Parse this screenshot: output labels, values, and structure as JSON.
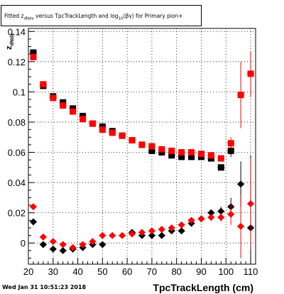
{
  "title": "Fitted  z_dNdx versus TpcTrackLength and log_10(βγ) for Primary pion+",
  "footer": {
    "date": "Wed Jan 31 10:51:23 2018"
  },
  "colors": {
    "black_series": "#000000",
    "red_series": "#ff0000",
    "grid": "#000000",
    "background": "#ffffff"
  },
  "chart_data": {
    "type": "scatter",
    "title": "Fitted  z_dNdx versus TpcTrackLength and log_10(βγ) for Primary pion+",
    "xlabel": "TpcTrackLength (cm)",
    "ylabel": "z_dNdx",
    "xlim": [
      20,
      112
    ],
    "ylim": [
      -0.014,
      0.142
    ],
    "grid": true,
    "x_ticks": [
      "20",
      "30",
      "40",
      "50",
      "60",
      "70",
      "80",
      "90",
      "100",
      "110"
    ],
    "y_ticks": [
      "0",
      "0.02",
      "0.04",
      "0.06",
      "0.08",
      "0.1",
      "0.12",
      "0.14"
    ],
    "series": [
      {
        "marker": "square",
        "color": "#000000",
        "points": [
          {
            "x": 22,
            "y": 0.126,
            "err": 0.001
          },
          {
            "x": 26,
            "y": 0.104,
            "err": 0.001
          },
          {
            "x": 30,
            "y": 0.097,
            "err": 0.001
          },
          {
            "x": 34,
            "y": 0.093,
            "err": 0.001
          },
          {
            "x": 38,
            "y": 0.089,
            "err": 0.001
          },
          {
            "x": 42,
            "y": 0.084,
            "err": 0.001
          },
          {
            "x": 46,
            "y": 0.079,
            "err": 0.001
          },
          {
            "x": 50,
            "y": 0.077,
            "err": 0.001
          },
          {
            "x": 54,
            "y": 0.074,
            "err": 0.001
          },
          {
            "x": 58,
            "y": 0.071,
            "err": 0.001
          },
          {
            "x": 62,
            "y": 0.068,
            "err": 0.001
          },
          {
            "x": 66,
            "y": 0.065,
            "err": 0.001
          },
          {
            "x": 70,
            "y": 0.061,
            "err": 0.001
          },
          {
            "x": 74,
            "y": 0.06,
            "err": 0.001
          },
          {
            "x": 78,
            "y": 0.058,
            "err": 0.001
          },
          {
            "x": 82,
            "y": 0.057,
            "err": 0.001
          },
          {
            "x": 86,
            "y": 0.057,
            "err": 0.001
          },
          {
            "x": 90,
            "y": 0.057,
            "err": 0.001
          },
          {
            "x": 94,
            "y": 0.056,
            "err": 0.001
          },
          {
            "x": 98,
            "y": 0.05,
            "err": 0.002
          },
          {
            "x": 102,
            "y": 0.061,
            "err": 0.004
          }
        ]
      },
      {
        "marker": "square",
        "color": "#ff0000",
        "points": [
          {
            "x": 22,
            "y": 0.123,
            "err": 0.001
          },
          {
            "x": 26,
            "y": 0.105,
            "err": 0.001
          },
          {
            "x": 30,
            "y": 0.096,
            "err": 0.001
          },
          {
            "x": 34,
            "y": 0.091,
            "err": 0.001
          },
          {
            "x": 38,
            "y": 0.087,
            "err": 0.001
          },
          {
            "x": 42,
            "y": 0.082,
            "err": 0.001
          },
          {
            "x": 46,
            "y": 0.079,
            "err": 0.001
          },
          {
            "x": 50,
            "y": 0.075,
            "err": 0.001
          },
          {
            "x": 54,
            "y": 0.073,
            "err": 0.001
          },
          {
            "x": 58,
            "y": 0.071,
            "err": 0.001
          },
          {
            "x": 62,
            "y": 0.068,
            "err": 0.001
          },
          {
            "x": 66,
            "y": 0.065,
            "err": 0.001
          },
          {
            "x": 70,
            "y": 0.064,
            "err": 0.001
          },
          {
            "x": 74,
            "y": 0.062,
            "err": 0.001
          },
          {
            "x": 78,
            "y": 0.061,
            "err": 0.001
          },
          {
            "x": 82,
            "y": 0.06,
            "err": 0.001
          },
          {
            "x": 86,
            "y": 0.06,
            "err": 0.001
          },
          {
            "x": 90,
            "y": 0.059,
            "err": 0.001
          },
          {
            "x": 94,
            "y": 0.058,
            "err": 0.001
          },
          {
            "x": 98,
            "y": 0.056,
            "err": 0.002
          },
          {
            "x": 102,
            "y": 0.066,
            "err": 0.004
          },
          {
            "x": 106,
            "y": 0.098,
            "err": 0.022
          },
          {
            "x": 110,
            "y": 0.112,
            "err": 0.015
          }
        ]
      },
      {
        "marker": "diamond",
        "color": "#000000",
        "points": [
          {
            "x": 22,
            "y": 0.014,
            "err": 0.002
          },
          {
            "x": 26,
            "y": -0.001,
            "err": 0.002
          },
          {
            "x": 30,
            "y": -0.004,
            "err": 0.001
          },
          {
            "x": 34,
            "y": -0.005,
            "err": 0.001
          },
          {
            "x": 38,
            "y": -0.004,
            "err": 0.001
          },
          {
            "x": 42,
            "y": -0.003,
            "err": 0.001
          },
          {
            "x": 46,
            "y": -0.001,
            "err": 0.001
          },
          {
            "x": 50,
            "y": -0.001,
            "err": 0.001
          },
          {
            "x": 62,
            "y": 0.007,
            "err": 0.001
          },
          {
            "x": 66,
            "y": 0.005,
            "err": 0.001
          },
          {
            "x": 70,
            "y": 0.005,
            "err": 0.001
          },
          {
            "x": 74,
            "y": 0.005,
            "err": 0.001
          },
          {
            "x": 78,
            "y": 0.008,
            "err": 0.001
          },
          {
            "x": 82,
            "y": 0.008,
            "err": 0.001
          },
          {
            "x": 86,
            "y": 0.013,
            "err": 0.001
          },
          {
            "x": 90,
            "y": 0.016,
            "err": 0.002
          },
          {
            "x": 94,
            "y": 0.02,
            "err": 0.002
          },
          {
            "x": 98,
            "y": 0.021,
            "err": 0.003
          },
          {
            "x": 102,
            "y": 0.024,
            "err": 0.006
          },
          {
            "x": 106,
            "y": 0.039,
            "err": 0.015
          },
          {
            "x": 110,
            "y": 0.01,
            "err": 0.048
          }
        ]
      },
      {
        "marker": "diamond",
        "color": "#ff0000",
        "points": [
          {
            "x": 22,
            "y": 0.024,
            "err": 0.001
          },
          {
            "x": 26,
            "y": 0.004,
            "err": 0.001
          },
          {
            "x": 30,
            "y": 0.001,
            "err": 0.001
          },
          {
            "x": 34,
            "y": -0.001,
            "err": 0.001
          },
          {
            "x": 38,
            "y": -0.003,
            "err": 0.001
          },
          {
            "x": 42,
            "y": -0.001,
            "err": 0.001
          },
          {
            "x": 46,
            "y": 0.001,
            "err": 0.001
          },
          {
            "x": 50,
            "y": 0.005,
            "err": 0.001
          },
          {
            "x": 54,
            "y": 0.005,
            "err": 0.001
          },
          {
            "x": 58,
            "y": 0.005,
            "err": 0.001
          },
          {
            "x": 62,
            "y": 0.006,
            "err": 0.001
          },
          {
            "x": 66,
            "y": 0.007,
            "err": 0.001
          },
          {
            "x": 70,
            "y": 0.008,
            "err": 0.001
          },
          {
            "x": 74,
            "y": 0.009,
            "err": 0.001
          },
          {
            "x": 78,
            "y": 0.01,
            "err": 0.001
          },
          {
            "x": 82,
            "y": 0.012,
            "err": 0.001
          },
          {
            "x": 86,
            "y": 0.015,
            "err": 0.001
          },
          {
            "x": 90,
            "y": 0.016,
            "err": 0.002
          },
          {
            "x": 94,
            "y": 0.017,
            "err": 0.002
          },
          {
            "x": 98,
            "y": 0.017,
            "err": 0.003
          },
          {
            "x": 102,
            "y": 0.019,
            "err": 0.007
          },
          {
            "x": 106,
            "y": 0.011,
            "err": 0.021
          },
          {
            "x": 110,
            "y": 0.026,
            "err": 0.03
          }
        ]
      }
    ]
  }
}
